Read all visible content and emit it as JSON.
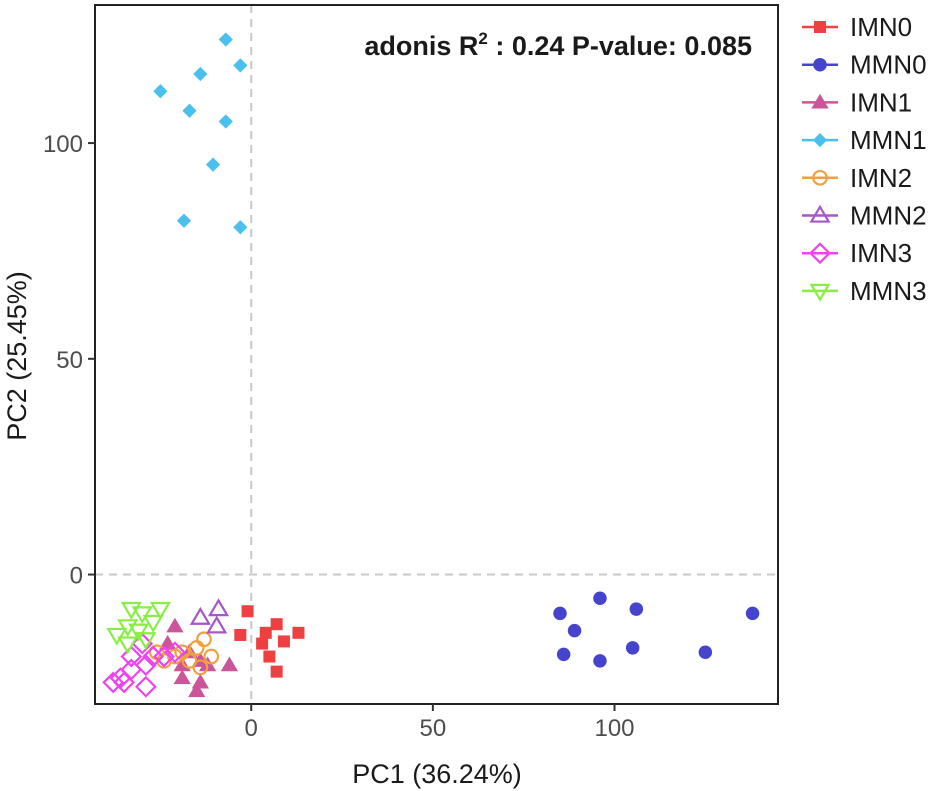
{
  "chart_data": {
    "type": "scatter",
    "title": "",
    "xlabel": "PC1 (36.24%)",
    "ylabel": "PC2 (25.45%)",
    "xlim": [
      -43,
      145
    ],
    "ylim": [
      -30,
      132
    ],
    "xticks": [
      0,
      50,
      100
    ],
    "yticks": [
      0,
      50,
      100
    ],
    "xtick_labels": [
      "0",
      "50",
      "100"
    ],
    "ytick_labels": [
      "0",
      "50",
      "100"
    ],
    "reference_lines": {
      "x": 0,
      "y": 0,
      "style": "dashed"
    },
    "grid": false,
    "legend_position": "right",
    "annotation": {
      "prefix": "adonis R",
      "superscript": "2",
      "suffix": " : 0.24 P-value: 0.085"
    },
    "series": [
      {
        "name": "IMN0",
        "color": "#ee4040",
        "marker": "square-filled",
        "points": [
          [
            -1,
            -8.5
          ],
          [
            -3,
            -14
          ],
          [
            7,
            -11.5
          ],
          [
            4,
            -13.5
          ],
          [
            9,
            -15.5
          ],
          [
            13,
            -13.5
          ],
          [
            3,
            -16
          ],
          [
            5,
            -19
          ],
          [
            7,
            -22.5
          ]
        ]
      },
      {
        "name": "MMN0",
        "color": "#4444cc",
        "marker": "circle-filled",
        "points": [
          [
            85,
            -9
          ],
          [
            96,
            -5.5
          ],
          [
            106,
            -8
          ],
          [
            138,
            -9
          ],
          [
            89,
            -13
          ],
          [
            86,
            -18.5
          ],
          [
            96,
            -20
          ],
          [
            105,
            -17
          ],
          [
            125,
            -18
          ]
        ]
      },
      {
        "name": "IMN1",
        "color": "#cc5599",
        "marker": "triangle-filled",
        "points": [
          [
            -21,
            -12
          ],
          [
            -23,
            -16
          ],
          [
            -17,
            -18
          ],
          [
            -19,
            -21
          ],
          [
            -14,
            -20
          ],
          [
            -12,
            -21
          ],
          [
            -6,
            -21
          ],
          [
            -19,
            -24
          ],
          [
            -14,
            -25
          ],
          [
            -15,
            -27
          ]
        ]
      },
      {
        "name": "MMN1",
        "color": "#4ac0ee",
        "marker": "diamond-filled",
        "points": [
          [
            -7,
            124
          ],
          [
            -3,
            118
          ],
          [
            -14,
            116
          ],
          [
            -25,
            112
          ],
          [
            -17,
            107.5
          ],
          [
            -7,
            105
          ],
          [
            -10.5,
            95
          ],
          [
            -18.5,
            82
          ],
          [
            -3,
            80.5
          ]
        ]
      },
      {
        "name": "IMN2",
        "color": "#f0a040",
        "marker": "circle-open",
        "points": [
          [
            -13,
            -15
          ],
          [
            -15,
            -17
          ],
          [
            -19,
            -18
          ],
          [
            -17,
            -20
          ],
          [
            -21,
            -19
          ],
          [
            -14,
            -21.5
          ],
          [
            -26,
            -18
          ],
          [
            -24,
            -20
          ],
          [
            -11,
            -19
          ]
        ]
      },
      {
        "name": "MMN2",
        "color": "#a855cc",
        "marker": "triangle-open",
        "points": [
          [
            -9,
            -8
          ],
          [
            -14,
            -10
          ],
          [
            -9.5,
            -12
          ]
        ]
      },
      {
        "name": "IMN3",
        "color": "#ee44ee",
        "marker": "diamond-open",
        "points": [
          [
            -30,
            -16
          ],
          [
            -33,
            -19
          ],
          [
            -27,
            -19
          ],
          [
            -24,
            -19
          ],
          [
            -21,
            -18
          ],
          [
            -29,
            -21
          ],
          [
            -33,
            -22
          ],
          [
            -36,
            -24
          ],
          [
            -29,
            -26
          ],
          [
            -35,
            -25
          ],
          [
            -38,
            -25
          ]
        ]
      },
      {
        "name": "MMN3",
        "color": "#88ee44",
        "marker": "triangle-down-open",
        "points": [
          [
            -33,
            -8
          ],
          [
            -30,
            -9
          ],
          [
            -25,
            -8
          ],
          [
            -34,
            -12
          ],
          [
            -27,
            -11
          ],
          [
            -31,
            -13
          ],
          [
            -37,
            -14
          ],
          [
            -29,
            -15
          ],
          [
            -34,
            -16
          ]
        ]
      }
    ]
  }
}
